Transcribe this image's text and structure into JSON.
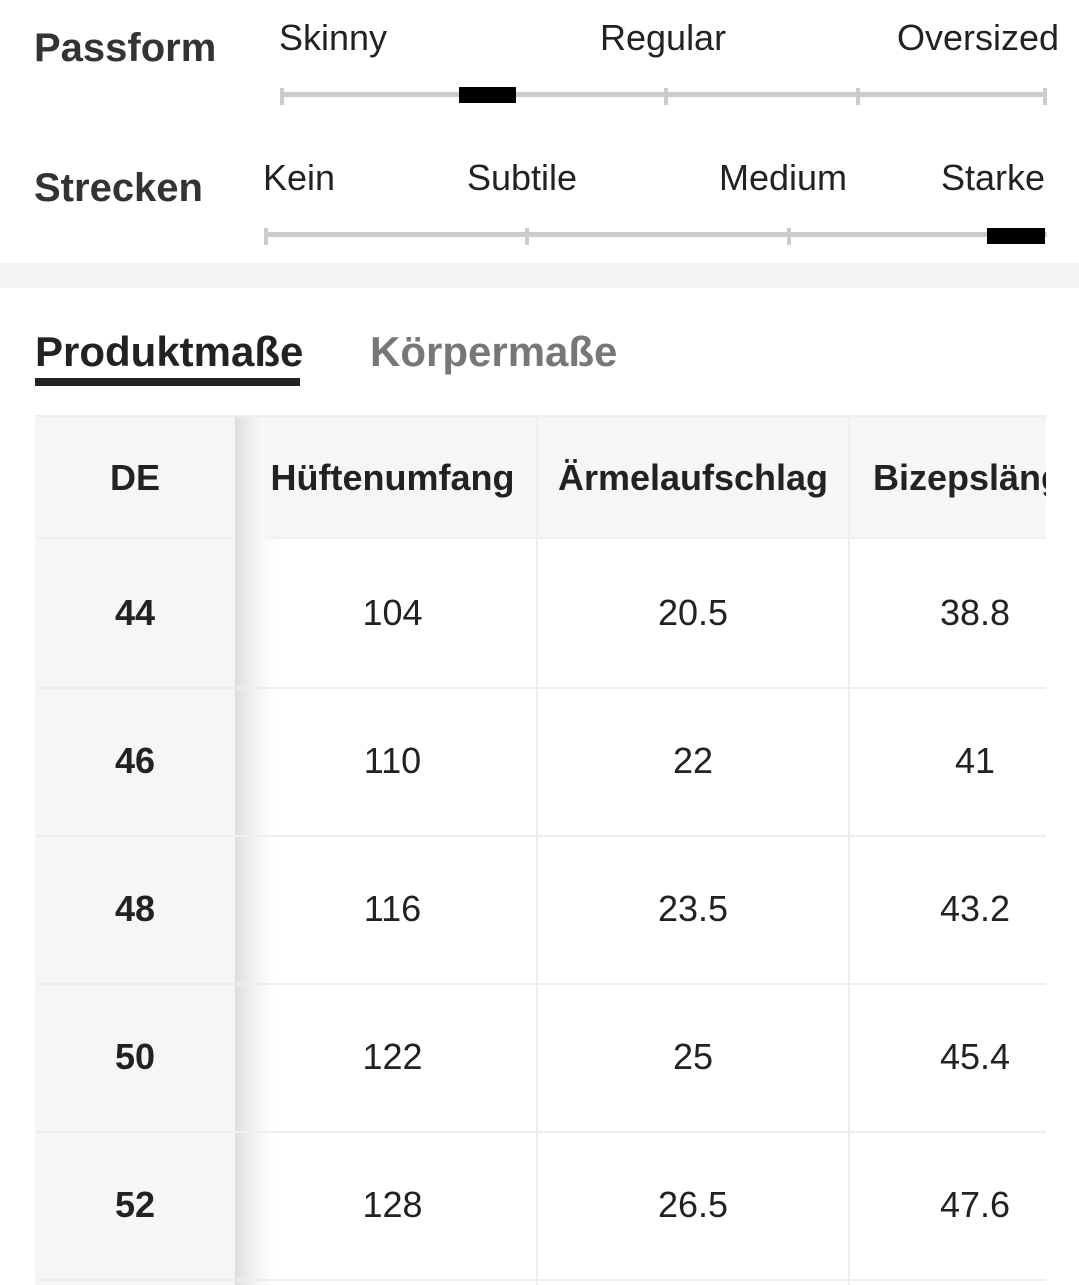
{
  "fit": {
    "passform": {
      "label": "Passform",
      "options": [
        "Skinny",
        "Regular",
        "Oversized"
      ],
      "selected_position": 0.27
    },
    "strecken": {
      "label": "Strecken",
      "options": [
        "Kein",
        "Subtile",
        "Medium",
        "Starke"
      ],
      "selected_position": 0.96
    }
  },
  "tabs": {
    "product": "Produktmaße",
    "body": "Körpermaße",
    "active": "product"
  },
  "table": {
    "headers": [
      "DE",
      "Hüftenumfang",
      "Ärmelaufschlag",
      "Bizepslänge"
    ],
    "rows": [
      [
        "44",
        "104",
        "20.5",
        "38.8"
      ],
      [
        "46",
        "110",
        "22",
        "41"
      ],
      [
        "48",
        "116",
        "23.5",
        "43.2"
      ],
      [
        "50",
        "122",
        "25",
        "45.4"
      ],
      [
        "52",
        "128",
        "26.5",
        "47.6"
      ]
    ]
  }
}
